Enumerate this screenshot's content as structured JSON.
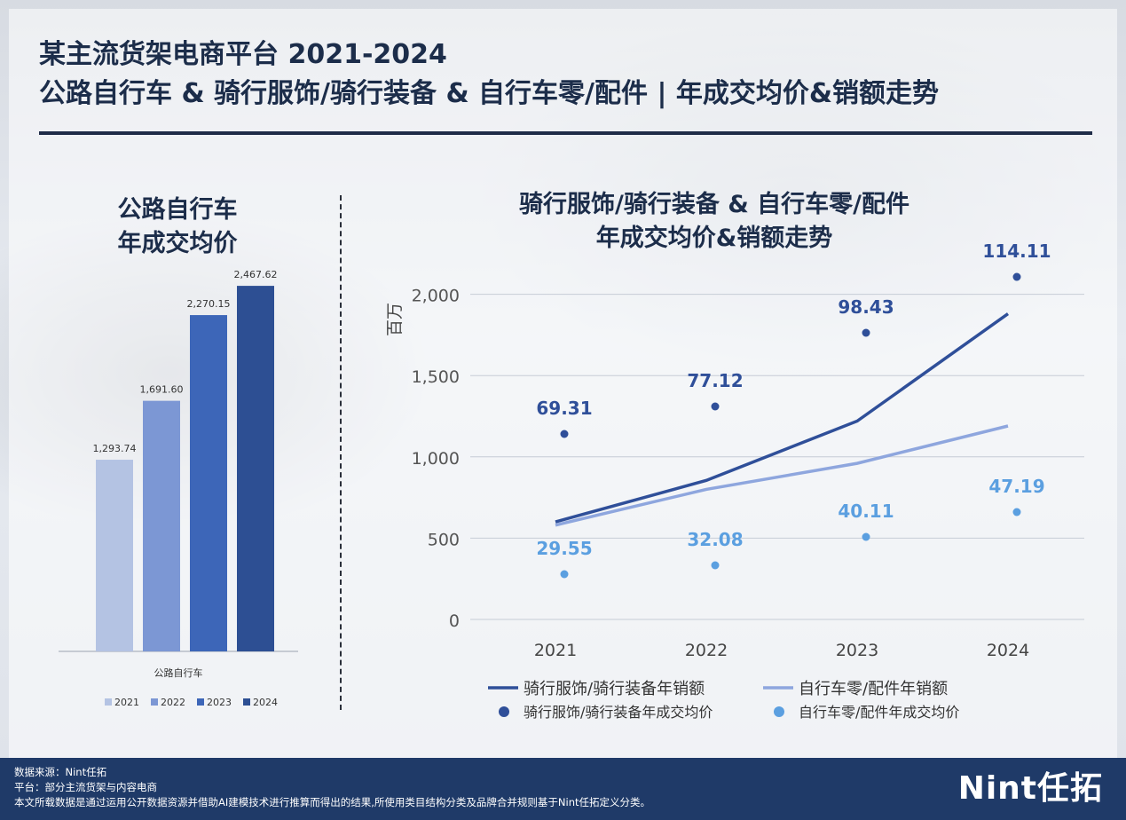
{
  "title_line1": "某主流货架电商平台 2021-2024",
  "title_line2": "公路自行车 & 骑行服饰/骑行装备 & 自行车零/配件 | 年成交均价&销额走势",
  "footer": {
    "source": "数据来源：Nint任拓",
    "platform": "平台：部分主流货架与内容电商",
    "note": "本文所载数据是通过运用公开数据资源并借助AI建模技术进行推算而得出的结果,所使用类目结构分类及品牌合并规则基于Nint任拓定义分类。",
    "logo": "Nint任拓"
  },
  "chart_data": [
    {
      "type": "bar",
      "title_line1": "公路自行车",
      "title_line2": "年成交均价",
      "xlabel": "公路自行车",
      "categories": [
        "2021",
        "2022",
        "2023",
        "2024"
      ],
      "values": [
        1293.74,
        1691.6,
        2270.15,
        2467.62
      ],
      "value_labels": [
        "1,293.74",
        "1,691.60",
        "2,270.15",
        "2,467.62"
      ],
      "colors": [
        "#b4c3e3",
        "#7c97d4",
        "#3d66b8",
        "#2d4f93"
      ],
      "legend_position": "bottom",
      "ylim": [
        0,
        2600
      ]
    },
    {
      "type": "line",
      "title_line1": "骑行服饰/骑行装备 & 自行车零/配件",
      "title_line2": "年成交均价&销额走势",
      "ylabel": "百万",
      "categories": [
        "2021",
        "2022",
        "2023",
        "2024"
      ],
      "yticks": [
        0,
        500,
        1000,
        1500,
        2000
      ],
      "ytick_labels": [
        "0",
        "500",
        "1,000",
        "1,500",
        "2,000"
      ],
      "ylim": [
        0,
        2100
      ],
      "grid": true,
      "legend_position": "bottom",
      "series": [
        {
          "name": "骑行服饰/骑行装备年销额",
          "kind": "line",
          "color": "#2f4f99",
          "values": [
            600,
            855,
            1220,
            1880
          ]
        },
        {
          "name": "自行车零/配件年销额",
          "kind": "line",
          "color": "#8ea6de",
          "values": [
            580,
            800,
            960,
            1190
          ]
        }
      ],
      "points": [
        {
          "name": "骑行服饰/骑行装备年成交均价",
          "kind": "point",
          "color": "#2f4f99",
          "values": [
            69.31,
            77.12,
            98.43,
            114.11
          ],
          "labels": [
            "69.31",
            "77.12",
            "98.43",
            "114.11"
          ]
        },
        {
          "name": "自行车零/配件年成交均价",
          "kind": "point",
          "color": "#5b9fe0",
          "values": [
            29.55,
            32.08,
            40.11,
            47.19
          ],
          "labels": [
            "29.55",
            "32.08",
            "40.11",
            "47.19"
          ]
        }
      ]
    }
  ]
}
